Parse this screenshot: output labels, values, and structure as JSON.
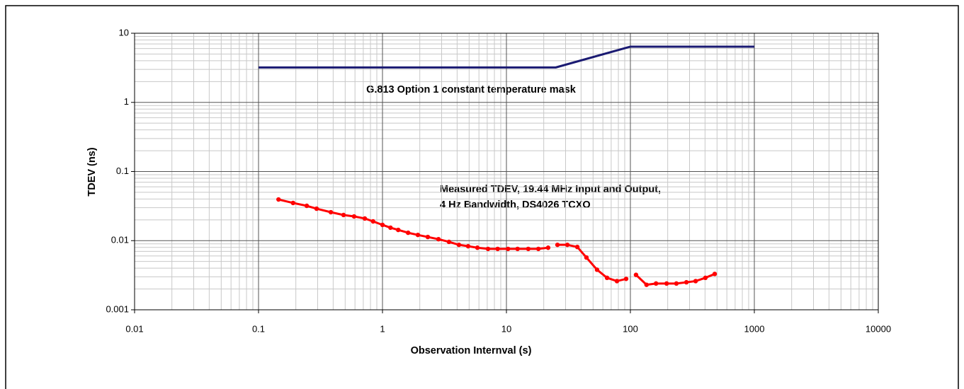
{
  "chart_data": {
    "type": "line",
    "xlabel": "Observation Internval (s)",
    "ylabel": "TDEV (ns)",
    "annotations": [
      "G.813 Option 1 constant temperature mask",
      "Measured TDEV, 19.44 MHz Input and Output,",
      "4 Hz Bandwidth, DS4026 TCXO"
    ],
    "xscale": "log",
    "yscale": "log",
    "grid": true,
    "xlim": [
      0.01,
      10000
    ],
    "ylim": [
      0.001,
      10
    ],
    "xticks": [
      0.01,
      0.1,
      1,
      10,
      100,
      1000,
      10000
    ],
    "yticks": [
      0.001,
      0.01,
      0.1,
      1,
      10
    ],
    "series": [
      {
        "color": "#1a1a72",
        "markers": false,
        "x": [
          0.1,
          25,
          100,
          1000
        ],
        "values": [
          3.2,
          3.2,
          6.4,
          6.4
        ]
      },
      {
        "color": "#ff0000",
        "markers": true,
        "x": [
          0.145,
          0.19,
          0.245,
          0.294,
          0.383,
          0.485,
          0.59,
          0.72,
          0.84,
          1.0,
          1.16,
          1.34,
          1.61,
          1.93,
          2.32,
          2.83,
          3.44,
          4.14,
          4.91,
          5.83,
          7.1,
          8.5,
          10.3,
          12.3,
          15.0,
          18.1,
          21.7,
          23.7,
          25.8,
          31,
          37.3,
          44.2,
          53.8,
          64.8,
          77.9,
          92.4,
          101,
          111,
          135,
          161,
          196,
          235,
          283,
          336,
          403,
          479
        ],
        "values": [
          0.0394,
          0.0351,
          0.0319,
          0.029,
          0.0258,
          0.0235,
          0.0224,
          0.0209,
          0.019,
          0.0169,
          0.0154,
          0.0143,
          0.013,
          0.0121,
          0.0113,
          0.0105,
          0.0096,
          0.0087,
          0.0083,
          0.0079,
          0.0076,
          0.0076,
          0.0076,
          0.0076,
          0.0076,
          0.0076,
          0.0079,
          null,
          0.0087,
          0.0087,
          0.0081,
          0.0057,
          0.0038,
          0.0029,
          0.0026,
          0.0028,
          null,
          0.0032,
          0.0023,
          0.0024,
          0.0024,
          0.0024,
          0.0025,
          0.0026,
          0.0029,
          0.0033
        ]
      }
    ]
  }
}
